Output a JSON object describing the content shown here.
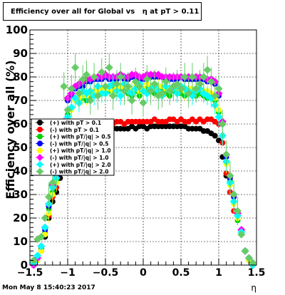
{
  "title": "Efficiency over all for Global vs   η at pT > 0.11",
  "timestamp": "Mon May  8 15:40:23 2017",
  "chart_data": {
    "type": "scatter",
    "title": "Efficiency over all for Global vs   η at pT > 0.11",
    "xlabel": "η",
    "ylabel": "Efficiency over all (%)",
    "xlim": [
      -1.5,
      1.5
    ],
    "ylim": [
      0,
      100
    ],
    "x_ticks": [
      "−1.5",
      "−1",
      "−0.5",
      "0",
      "0.5",
      "1",
      "1.5"
    ],
    "y_ticks": [
      "0",
      "10",
      "20",
      "30",
      "40",
      "50",
      "60",
      "70",
      "80",
      "90",
      "100"
    ],
    "grid": true,
    "legend_position": "center-left",
    "x": [
      -1.45,
      -1.4,
      -1.35,
      -1.3,
      -1.25,
      -1.2,
      -1.15,
      -1.1,
      -1.05,
      -1.0,
      -0.95,
      -0.9,
      -0.85,
      -0.8,
      -0.75,
      -0.7,
      -0.65,
      -0.6,
      -0.55,
      -0.5,
      -0.45,
      -0.4,
      -0.35,
      -0.3,
      -0.25,
      -0.2,
      -0.15,
      -0.1,
      -0.05,
      0.0,
      0.05,
      0.1,
      0.15,
      0.2,
      0.25,
      0.3,
      0.35,
      0.4,
      0.45,
      0.5,
      0.55,
      0.6,
      0.65,
      0.7,
      0.75,
      0.8,
      0.85,
      0.9,
      0.95,
      1.0,
      1.05,
      1.1,
      1.15,
      1.2,
      1.25,
      1.3,
      1.35,
      1.4,
      1.45
    ],
    "series": [
      {
        "name": "(+) with pT > 0.1",
        "color": "#000000",
        "marker": "circle",
        "values": [
          0,
          2,
          6,
          12,
          20,
          27,
          31,
          37,
          46,
          55,
          59,
          60,
          59,
          59,
          60,
          59,
          59,
          58,
          59,
          59,
          58,
          58,
          58,
          58,
          58,
          58,
          59,
          58,
          59,
          59,
          58,
          59,
          59,
          59,
          59,
          59,
          59,
          59,
          59,
          59,
          59,
          58,
          58,
          58,
          58,
          57,
          57,
          56,
          55,
          53,
          46,
          38,
          31,
          27,
          21,
          14,
          6,
          2,
          0
        ]
      },
      {
        "name": "(-) with pT > 0.1",
        "color": "#ff0000",
        "marker": "circle",
        "values": [
          0,
          2,
          7,
          13,
          21,
          29,
          33,
          40,
          48,
          57,
          61,
          61,
          61,
          61,
          61,
          61,
          61,
          60,
          61,
          60,
          61,
          60,
          61,
          61,
          60,
          61,
          61,
          61,
          61,
          61,
          61,
          61,
          62,
          61,
          61,
          61,
          62,
          62,
          61,
          62,
          61,
          61,
          62,
          61,
          62,
          61,
          62,
          62,
          61,
          60,
          52,
          39,
          31,
          23,
          22,
          14,
          6,
          2,
          0
        ]
      },
      {
        "name": "(+) with pT/|q| > 0.5",
        "color": "#00d000",
        "marker": "circle",
        "values": [
          0,
          2,
          7,
          14,
          24,
          31,
          36,
          44,
          56,
          64,
          67,
          70,
          69,
          71,
          70,
          72,
          73,
          72,
          73,
          73,
          74,
          75,
          74,
          75,
          75,
          73,
          72,
          74,
          72,
          74,
          75,
          74,
          73,
          75,
          74,
          73,
          72,
          74,
          73,
          73,
          72,
          74,
          73,
          72,
          73,
          72,
          71,
          71,
          70,
          65,
          55,
          44,
          36,
          27,
          19,
          13,
          6,
          2,
          0
        ]
      },
      {
        "name": "(-) with pT/|q| > 0.5",
        "color": "#0000ff",
        "marker": "circle",
        "values": [
          0,
          3,
          8,
          15,
          25,
          33,
          38,
          46,
          60,
          70,
          72,
          75,
          76,
          76,
          78,
          78,
          79,
          79,
          79,
          80,
          79,
          79,
          79,
          80,
          79,
          79,
          80,
          80,
          79,
          79,
          80,
          80,
          80,
          80,
          80,
          79,
          79,
          79,
          79,
          80,
          79,
          79,
          79,
          79,
          79,
          79,
          78,
          78,
          77,
          72,
          60,
          46,
          37,
          29,
          21,
          14,
          6,
          3,
          0
        ]
      },
      {
        "name": "(+) with pT/|q| > 1.0",
        "color": "#ffff00",
        "marker": "circle",
        "values": [
          0,
          2,
          6,
          13,
          22,
          30,
          35,
          43,
          55,
          63,
          66,
          70,
          71,
          72,
          72,
          73,
          74,
          74,
          75,
          75,
          75,
          74,
          75,
          76,
          75,
          75,
          74,
          76,
          74,
          75,
          77,
          76,
          75,
          76,
          76,
          75,
          75,
          76,
          75,
          75,
          74,
          75,
          75,
          74,
          75,
          74,
          74,
          73,
          71,
          66,
          55,
          43,
          34,
          26,
          20,
          13,
          6,
          2,
          0
        ]
      },
      {
        "name": "(-) with pT/|q| > 1.0",
        "color": "#ff00ff",
        "marker": "diamond",
        "values": [
          0,
          3,
          8,
          16,
          26,
          34,
          39,
          47,
          61,
          71,
          73,
          76,
          77,
          78,
          79,
          79,
          80,
          80,
          80,
          81,
          80,
          80,
          80,
          81,
          80,
          80,
          81,
          81,
          80,
          80,
          81,
          81,
          81,
          81,
          80,
          80,
          80,
          80,
          80,
          80,
          80,
          80,
          80,
          80,
          80,
          80,
          79,
          79,
          78,
          73,
          61,
          47,
          38,
          30,
          22,
          15,
          6,
          3,
          0
        ]
      },
      {
        "name": "(+) with pT/|q| > 2.0",
        "color": "#00ffff",
        "marker": "diamond",
        "values": [
          1,
          4,
          8,
          16,
          26,
          33,
          37,
          45,
          58,
          63,
          67,
          71,
          69,
          74,
          73,
          74,
          72,
          76,
          73,
          73,
          76,
          77,
          74,
          72,
          77,
          74,
          73,
          75,
          77,
          74,
          73,
          75,
          76,
          74,
          72,
          76,
          74,
          75,
          73,
          76,
          75,
          74,
          72,
          74,
          75,
          73,
          72,
          71,
          68,
          63,
          55,
          44,
          35,
          27,
          21,
          14,
          6,
          3,
          0
        ]
      },
      {
        "name": "(-) with pT/|q| > 2.0",
        "color": "#66cc66",
        "marker": "diamond",
        "values": [
          2,
          11,
          12,
          20,
          29,
          35,
          40,
          50,
          76,
          66,
          75,
          84,
          73,
          79,
          81,
          70,
          80,
          72,
          82,
          76,
          84,
          72,
          77,
          80,
          74,
          76,
          70,
          78,
          76,
          69,
          79,
          74,
          77,
          72,
          73,
          78,
          74,
          76,
          77,
          75,
          80,
          73,
          80,
          75,
          77,
          80,
          83,
          78,
          72,
          75,
          60,
          47,
          38,
          30,
          23,
          13,
          6,
          3,
          1
        ]
      }
    ]
  }
}
